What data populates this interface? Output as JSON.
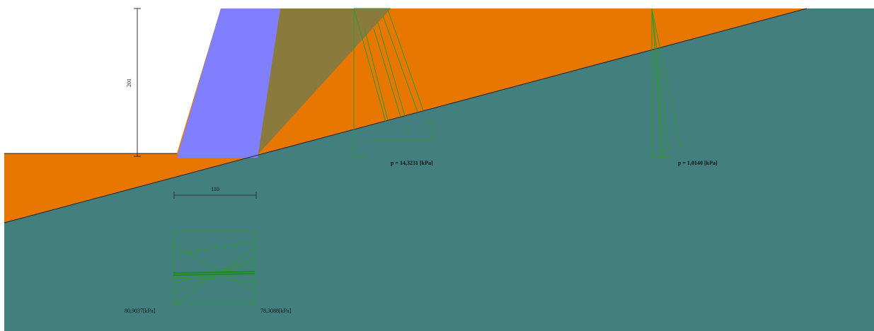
{
  "colors": {
    "background": "#ffffff",
    "rock": "#437f7f",
    "soil": "#e77700",
    "wall": "#8080ff",
    "wedge": "#8a7a3e",
    "pressure": "#2e9a2e",
    "dimension": "#333333"
  },
  "dimensions": {
    "wall_height": "201",
    "base_width": "110"
  },
  "pressure_labels": {
    "p1": "p = 14,3231 [kPa]",
    "p2": "p = 1,0140 [kPa]"
  },
  "base_pressure_labels": {
    "left": "80,9037[kPa]",
    "right": "78,3088[kPa]"
  }
}
